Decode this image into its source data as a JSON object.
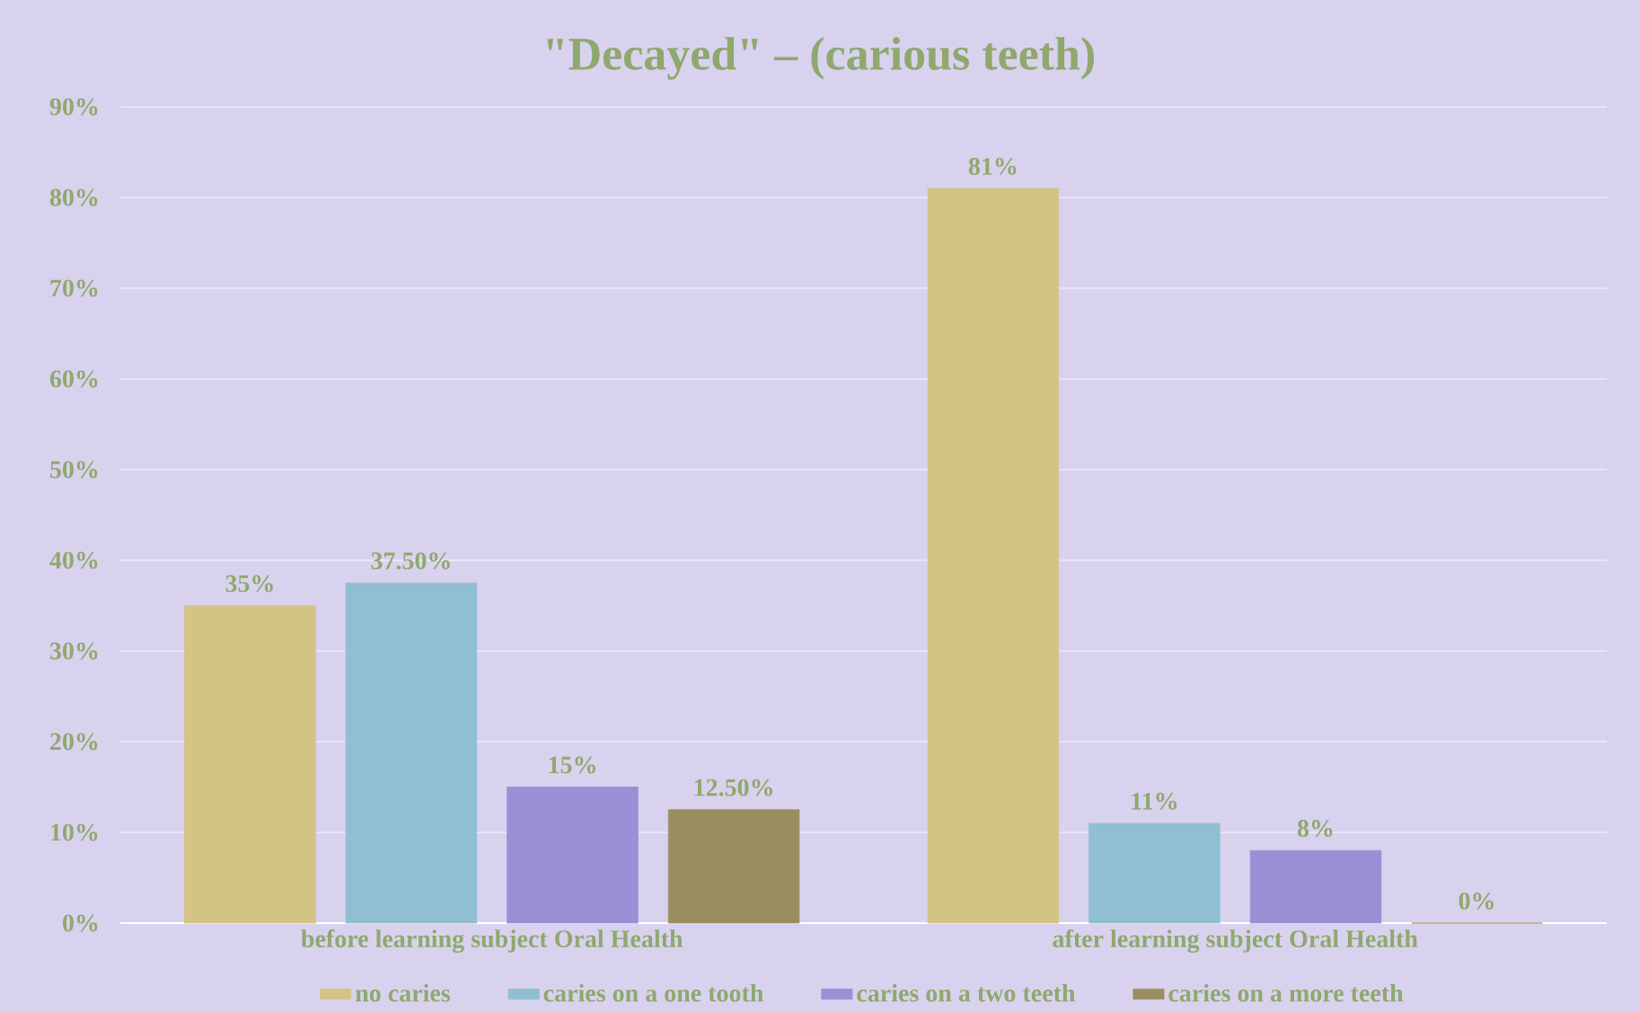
{
  "chart_data": {
    "type": "bar",
    "title": "\"Decayed\" – (carious teeth)",
    "categories": [
      "before learning subject Oral Health",
      "after  learning subject Oral Health"
    ],
    "series": [
      {
        "name": "no caries",
        "color": "#d4c483",
        "values": [
          35,
          81
        ],
        "value_labels": [
          "35%",
          "81%"
        ]
      },
      {
        "name": "caries on a one tooth",
        "color": "#8fbfd0",
        "values": [
          37.5,
          11
        ],
        "value_labels": [
          "37.50%",
          "11%"
        ]
      },
      {
        "name": "caries on a two teeth",
        "color": "#9b8fd6",
        "values": [
          15,
          8
        ],
        "value_labels": [
          "15%",
          "8%"
        ]
      },
      {
        "name": "caries on a more teeth",
        "color": "#9a8e60",
        "values": [
          12.5,
          0
        ],
        "value_labels": [
          "12.50%",
          "0%"
        ]
      }
    ],
    "ylim": [
      0,
      90
    ],
    "yticks": [
      {
        "value": 0,
        "label": "0%"
      },
      {
        "value": 10,
        "label": "10%"
      },
      {
        "value": 20,
        "label": "20%"
      },
      {
        "value": 30,
        "label": "30%"
      },
      {
        "value": 40,
        "label": "40%"
      },
      {
        "value": 50,
        "label": "50%"
      },
      {
        "value": 60,
        "label": "60%"
      },
      {
        "value": 70,
        "label": "70%"
      },
      {
        "value": 80,
        "label": "80%"
      },
      {
        "value": 90,
        "label": "90%"
      }
    ],
    "grid": "y",
    "legend": "bottom"
  }
}
